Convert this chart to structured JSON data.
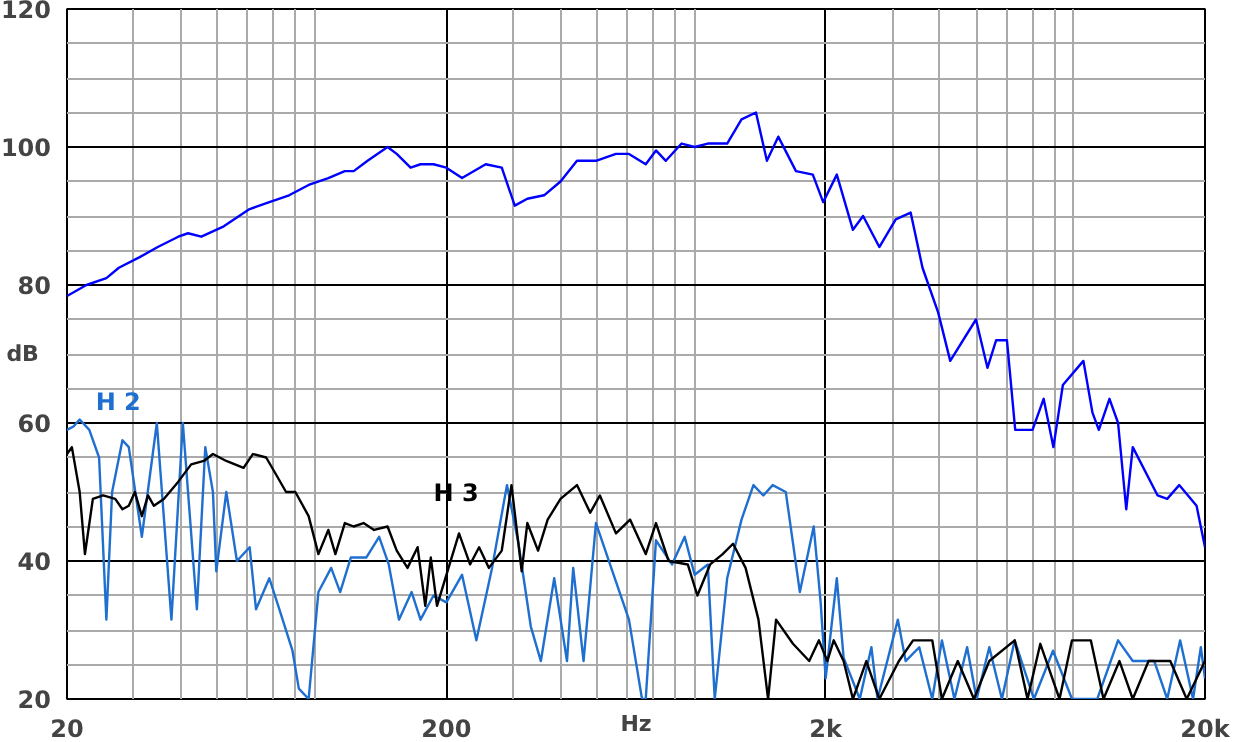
{
  "chart_data": {
    "type": "line",
    "xlabel": "Hz",
    "ylabel": "dB",
    "log": "x",
    "grid": true,
    "legend": false,
    "xlim": [
      20,
      20000
    ],
    "ylim": [
      20,
      120
    ],
    "xticks": [
      20,
      {
        "value": 30,
        "label": null
      },
      {
        "value": 40,
        "label": null
      },
      {
        "value": 50,
        "label": null
      },
      {
        "value": 60,
        "label": null
      },
      {
        "value": 70,
        "label": null
      },
      {
        "value": 80,
        "label": null
      },
      {
        "value": 90,
        "label": null
      },
      200,
      {
        "value": 300,
        "label": null
      },
      {
        "value": 400,
        "label": null
      },
      {
        "value": 500,
        "label": null
      },
      {
        "value": 600,
        "label": null
      },
      {
        "value": 700,
        "label": null
      },
      {
        "value": 800,
        "label": null
      },
      {
        "value": 900,
        "label": null
      },
      {
        "value": 2000,
        "label": "2k"
      },
      {
        "value": 3000,
        "label": null
      },
      {
        "value": 4000,
        "label": null
      },
      {
        "value": 5000,
        "label": null
      },
      {
        "value": 6000,
        "label": null
      },
      {
        "value": 7000,
        "label": null
      },
      {
        "value": 8000,
        "label": null
      },
      {
        "value": 9000,
        "label": null
      },
      {
        "value": 20000,
        "label": "20k"
      }
    ],
    "yticks": [
      20,
      {
        "value": 25,
        "label": null
      },
      {
        "value": 30,
        "label": null
      },
      {
        "value": 35,
        "label": null
      },
      40,
      {
        "value": 45,
        "label": null
      },
      {
        "value": 50,
        "label": null
      },
      {
        "value": 55,
        "label": null
      },
      60,
      {
        "value": 65,
        "label": null
      },
      {
        "value": 70,
        "label": null
      },
      {
        "value": 75,
        "label": null
      },
      80,
      {
        "value": 85,
        "label": null
      },
      {
        "value": 90,
        "label": null
      },
      {
        "value": 95,
        "label": null
      },
      100,
      {
        "value": 105,
        "label": null
      },
      {
        "value": 110,
        "label": null
      },
      {
        "value": 115,
        "label": null
      },
      120
    ],
    "series": [
      {
        "color": "#0000ff",
        "x": [
          20,
          22.5,
          25.4,
          27.4,
          31,
          34.7,
          39.3,
          41.7,
          45.2,
          51.8,
          60.6,
          68.3,
          77,
          86.7,
          97.7,
          108,
          114,
          124,
          140,
          148,
          161,
          171,
          185,
          200,
          220,
          254,
          280,
          303,
          327,
          362,
          400,
          442,
          496,
          560,
          606,
          671,
          714,
          758,
          834,
          903,
          978,
          1100,
          1200,
          1310,
          1400,
          1500,
          1670,
          1850,
          1970,
          2140,
          2360,
          2510,
          2770,
          3060,
          3350,
          3600,
          3960,
          4260,
          4980,
          5340,
          5630,
          6010,
          6320,
          7020,
          7510,
          7970,
          8440,
          9560,
          10100,
          10500,
          11200,
          11800,
          12400,
          12900,
          15000,
          15900,
          17100,
          19000,
          20000
        ],
        "values": [
          78.4,
          80,
          81,
          82.5,
          84,
          85.5,
          87,
          87.5,
          87,
          88.5,
          91,
          92,
          93,
          94.5,
          95.5,
          96.5,
          96.5,
          98,
          100,
          99,
          97,
          97.5,
          97.5,
          97,
          95.5,
          97.5,
          97,
          91.5,
          92.5,
          93,
          95,
          98,
          98,
          99,
          99,
          97.5,
          99.5,
          98,
          100.5,
          100,
          100.5,
          100.5,
          104,
          105,
          98,
          101.5,
          96.5,
          96,
          92,
          96,
          88,
          90,
          85.5,
          89.5,
          90.5,
          82.5,
          76,
          69,
          75,
          68,
          72,
          72,
          59,
          59,
          63.5,
          56.5,
          65.5,
          69,
          61.5,
          59,
          63.5,
          60,
          47.5,
          56.5,
          49.5,
          49,
          51,
          48,
          42
        ]
      },
      {
        "name": "H 2",
        "color": "#1f6fd0",
        "x": [
          20,
          20.8,
          21.6,
          22.9,
          24.3,
          25.4,
          26.3,
          28,
          29.1,
          31.5,
          34.5,
          37.7,
          40.4,
          44,
          46.3,
          48.5,
          49.5,
          52.6,
          56.1,
          60.6,
          63,
          68.3,
          72.6,
          78.6,
          81.7,
          86.7,
          92,
          99.4,
          105,
          112,
          123,
          133,
          141,
          150,
          162,
          171,
          185,
          200,
          220,
          240,
          264,
          289,
          310,
          334,
          355,
          385,
          416,
          432,
          460,
          496,
          560,
          606,
          656,
          671,
          714,
          787,
          850,
          903,
          978,
          1020,
          1100,
          1200,
          1290,
          1370,
          1450,
          1570,
          1710,
          1860,
          1940,
          2000,
          2140,
          2230,
          2460,
          2640,
          2740,
          3100,
          3250,
          3530,
          3820,
          4050,
          4370,
          4720,
          5000,
          5400,
          5830,
          6300,
          7080,
          7950,
          8920,
          10400,
          11800,
          12900,
          14700,
          15900,
          17200,
          18600,
          19500,
          20000
        ],
        "values": [
          59,
          59.5,
          60.5,
          59,
          55,
          31.5,
          50,
          57.5,
          56.5,
          43.5,
          60,
          31.5,
          60,
          33,
          56.5,
          50,
          38.5,
          50,
          40,
          42,
          33,
          37.5,
          33,
          27,
          21.5,
          20,
          35.5,
          39,
          35.5,
          40.5,
          40.5,
          43.5,
          39.5,
          31.5,
          35.5,
          31.5,
          35,
          34,
          38,
          28.5,
          39,
          51,
          42.5,
          30.5,
          25.5,
          37.5,
          25.5,
          39,
          25.5,
          45.5,
          37,
          31.5,
          20,
          20,
          43,
          39.5,
          43.5,
          38,
          39.5,
          20,
          37.5,
          46,
          51,
          49.5,
          51,
          50,
          35.5,
          45,
          34,
          23,
          37.5,
          26,
          20,
          27.5,
          20,
          31.5,
          25.5,
          27.5,
          20,
          28.5,
          20,
          27.5,
          20,
          27.5,
          20,
          28.5,
          20,
          27,
          20,
          20,
          28.5,
          25.5,
          25.5,
          20,
          28.5,
          20,
          27.5,
          23
        ]
      },
      {
        "name": "H 3",
        "color": "#000000",
        "x": [
          20,
          20.6,
          21.6,
          22.3,
          23.4,
          24.9,
          26.8,
          28,
          29.1,
          30.2,
          31.5,
          32.7,
          33.9,
          36,
          39.3,
          42.5,
          45.9,
          48.5,
          52.6,
          58.4,
          61.8,
          67,
          71.2,
          75.6,
          80,
          86.7,
          92,
          97.7,
          102,
          108,
          114,
          121,
          129,
          140,
          148,
          158,
          168,
          176,
          182,
          189,
          204,
          216,
          231,
          244,
          259,
          280,
          297,
          316,
          327,
          349,
          370,
          400,
          442,
          479,
          508,
          560,
          610,
          671,
          714,
          771,
          866,
          918,
          992,
          1070,
          1140,
          1230,
          1330,
          1410,
          1480,
          1640,
          1810,
          1920,
          2020,
          2100,
          2230,
          2360,
          2560,
          2770,
          3120,
          3400,
          3820,
          4050,
          4460,
          4920,
          5400,
          6300,
          6810,
          7360,
          8270,
          8920,
          10000,
          10800,
          11900,
          12900,
          14200,
          16200,
          17900,
          20000
        ],
        "values": [
          55.5,
          56.5,
          50,
          41,
          49,
          49.5,
          49,
          47.5,
          48,
          50,
          46.5,
          49.5,
          48,
          49,
          51.5,
          54,
          54.5,
          55.5,
          54.5,
          53.5,
          55.5,
          55,
          52.5,
          50,
          50,
          46.5,
          41,
          44.5,
          41,
          45.5,
          45,
          45.5,
          44.5,
          45,
          41.5,
          39,
          42,
          33.5,
          40.5,
          33.5,
          39.5,
          44,
          39.5,
          42,
          39,
          41.5,
          51,
          38.5,
          45.5,
          41.5,
          46,
          49,
          51,
          47,
          49.5,
          44,
          46,
          41,
          45.5,
          40,
          39.5,
          35,
          39.5,
          41,
          42.5,
          39,
          31.5,
          20,
          31.5,
          28,
          25.5,
          28.5,
          25.5,
          28.5,
          25.5,
          20,
          25.5,
          20,
          25.5,
          28.5,
          28.5,
          20,
          25.5,
          20,
          25.5,
          28.5,
          20,
          28,
          20,
          28.5,
          28.5,
          20,
          25.5,
          20,
          25.5,
          25.5,
          20,
          25.5
        ]
      }
    ]
  }
}
